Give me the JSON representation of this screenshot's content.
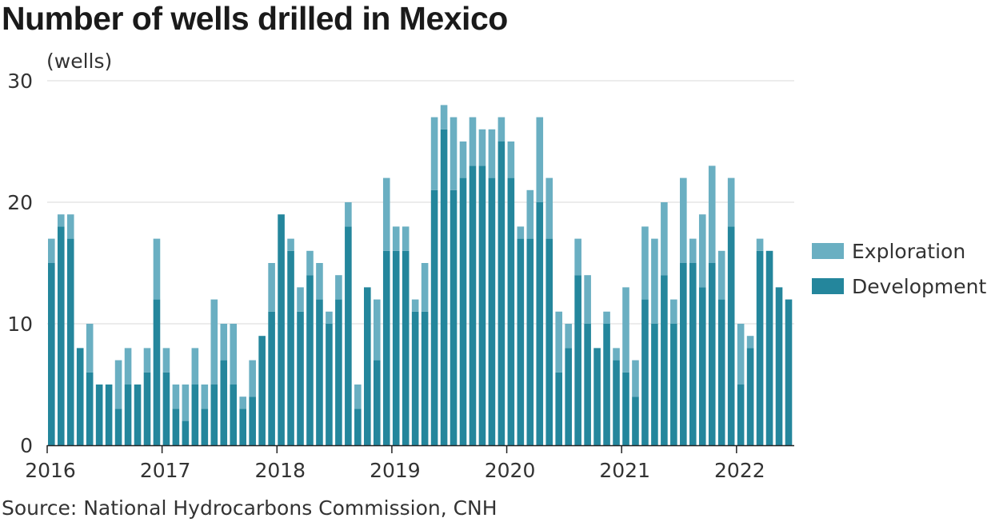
{
  "title": "Number of wells drilled in Mexico",
  "unit_label": "(wells)",
  "source": "Source: National Hydrocarbons Commission, CNH",
  "colors": {
    "exploration": "#6aafc2",
    "development": "#24869c",
    "grid": "#d9d9d9",
    "axis": "#222222"
  },
  "legend": [
    {
      "key": "exploration",
      "label": "Exploration"
    },
    {
      "key": "development",
      "label": "Development"
    }
  ],
  "chart_data": {
    "type": "bar",
    "stacked": true,
    "title": "Number of wells drilled in Mexico",
    "ylabel": "(wells)",
    "ylim": [
      0,
      30
    ],
    "yticks": [
      0,
      10,
      20,
      30
    ],
    "grid": true,
    "legend_position": "right",
    "x_year_labels": [
      "2016",
      "2017",
      "2018",
      "2019",
      "2020",
      "2021",
      "2022"
    ],
    "series": [
      {
        "name": "Development",
        "values": [
          15,
          18,
          17,
          8,
          6,
          5,
          5,
          3,
          5,
          5,
          6,
          12,
          6,
          3,
          2,
          5,
          3,
          5,
          7,
          5,
          3,
          4,
          9,
          11,
          19,
          16,
          11,
          14,
          12,
          10,
          12,
          18,
          3,
          13,
          7,
          16,
          16,
          16,
          11,
          11,
          21,
          26,
          21,
          22,
          23,
          23,
          22,
          25,
          22,
          17,
          17,
          20,
          17,
          6,
          8,
          14,
          10,
          8,
          10,
          7,
          6,
          4,
          12,
          10,
          14,
          10,
          15,
          15,
          13,
          15,
          12,
          18,
          5,
          8,
          16,
          16,
          13,
          12
        ]
      },
      {
        "name": "Exploration",
        "values": [
          2,
          1,
          2,
          0,
          4,
          0,
          0,
          4,
          3,
          0,
          2,
          5,
          2,
          2,
          3,
          3,
          2,
          7,
          3,
          5,
          1,
          3,
          0,
          4,
          0,
          1,
          2,
          2,
          3,
          1,
          2,
          2,
          2,
          0,
          5,
          6,
          2,
          2,
          1,
          4,
          6,
          2,
          6,
          3,
          4,
          3,
          4,
          2,
          3,
          1,
          4,
          7,
          5,
          5,
          2,
          3,
          4,
          0,
          1,
          1,
          7,
          3,
          6,
          7,
          6,
          2,
          7,
          2,
          6,
          8,
          4,
          4,
          5,
          1,
          1,
          0,
          0,
          0
        ]
      }
    ]
  }
}
